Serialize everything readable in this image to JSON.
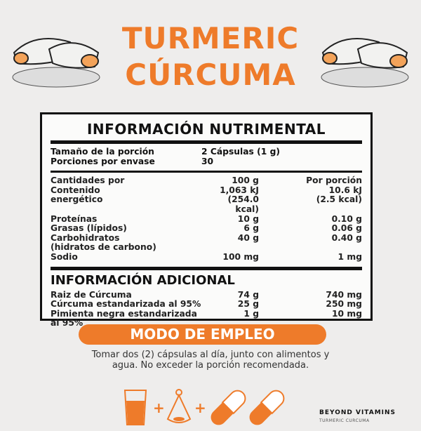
{
  "header": {
    "title_en": "TURMERIC",
    "title_es": "CÚRCUMA"
  },
  "nutrition": {
    "title": "INFORMACIÓN NUTRIMENTAL",
    "serving": [
      {
        "label": "Tamaño de la porción",
        "value": "2 Cápsulas (1 g)"
      },
      {
        "label": "Porciones por envase",
        "value": "30"
      }
    ],
    "columns": {
      "label": "Cantidades por",
      "per100": "100 g",
      "perServing": "Por porción"
    },
    "rows": [
      {
        "label": "Contenido",
        "per100": "1,063 kJ",
        "perServing": "10.6 kJ"
      },
      {
        "label": "energético",
        "per100": "(254.0 kcal)",
        "perServing": "(2.5 kcal)"
      },
      {
        "label": "Proteínas",
        "per100": "10 g",
        "perServing": "0.10 g"
      },
      {
        "label": "Grasas (lípidos)",
        "per100": "6 g",
        "perServing": "0.06 g"
      },
      {
        "label": "Carbohidratos",
        "per100": "40 g",
        "perServing": "0.40 g"
      },
      {
        "label": "(hidratos de carbono)",
        "per100": "",
        "perServing": ""
      },
      {
        "label": "Sodio",
        "per100": "100 mg",
        "perServing": "1 mg"
      }
    ]
  },
  "additional": {
    "title": "INFORMACIÓN ADICIONAL",
    "rows": [
      {
        "label": "Raiz de Cúrcuma",
        "per100": "74 g",
        "perServing": "740 mg"
      },
      {
        "label": "Cúrcuma estandarizada al 95%",
        "per100": "25 g",
        "perServing": "250 mg"
      },
      {
        "label": "Pimienta negra estandarizada al 95%",
        "per100": "1 g",
        "perServing": "10 mg"
      }
    ]
  },
  "usage": {
    "title": "MODO DE EMPLEO",
    "text": "Tomar dos (2) cápsulas al día, junto con alimentos y agua. No exceder la porción recomendada.",
    "plus": "+"
  },
  "brand": {
    "name": "BEYOND VITAMINS",
    "product": "TURMERIC CURCUMA"
  },
  "colors": {
    "accent": "#ee7b2a",
    "background": "#eeedec"
  }
}
